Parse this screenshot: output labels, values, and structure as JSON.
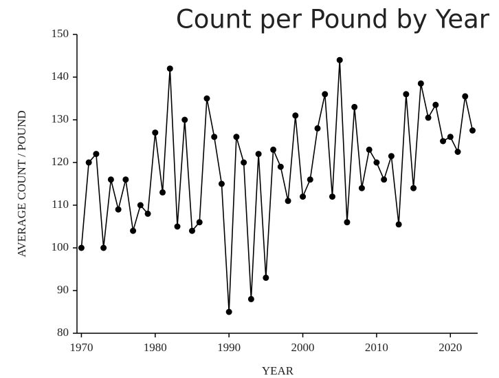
{
  "chart_data": {
    "type": "line",
    "title": "Count per Pound by Year",
    "xlabel": "YEAR",
    "ylabel": "AVERAGE COUNT / POUND",
    "x": [
      1970,
      1971,
      1972,
      1973,
      1974,
      1975,
      1976,
      1977,
      1978,
      1979,
      1980,
      1981,
      1982,
      1983,
      1984,
      1985,
      1986,
      1987,
      1988,
      1989,
      1990,
      1991,
      1992,
      1993,
      1994,
      1995,
      1996,
      1997,
      1998,
      1999,
      2000,
      2001,
      2002,
      2003,
      2004,
      2005,
      2006,
      2007,
      2008,
      2009,
      2010,
      2011,
      2012,
      2013,
      2014,
      2015,
      2016,
      2017,
      2018,
      2019,
      2020,
      2021,
      2022,
      2023
    ],
    "values": [
      100,
      120,
      122,
      100,
      116,
      109,
      116,
      104,
      110,
      108,
      127,
      113,
      142,
      105,
      130,
      104,
      106,
      135,
      126,
      115,
      85,
      126,
      120,
      88,
      122,
      93,
      123,
      119,
      111,
      131,
      112,
      116,
      128,
      136,
      112,
      144,
      106,
      133,
      114,
      123,
      120,
      116,
      121.5,
      105.5,
      136,
      114,
      138.5,
      130.5,
      133.5,
      125,
      126,
      122.5,
      135.5,
      127.5
    ],
    "color": "#000000",
    "xlim": [
      1969.4,
      2023.7
    ],
    "xticks": [
      1970,
      1980,
      1990,
      2000,
      2010,
      2020
    ],
    "ylim": [
      80,
      150
    ],
    "yticks": [
      80,
      90,
      100,
      110,
      120,
      130,
      140,
      150
    ]
  }
}
